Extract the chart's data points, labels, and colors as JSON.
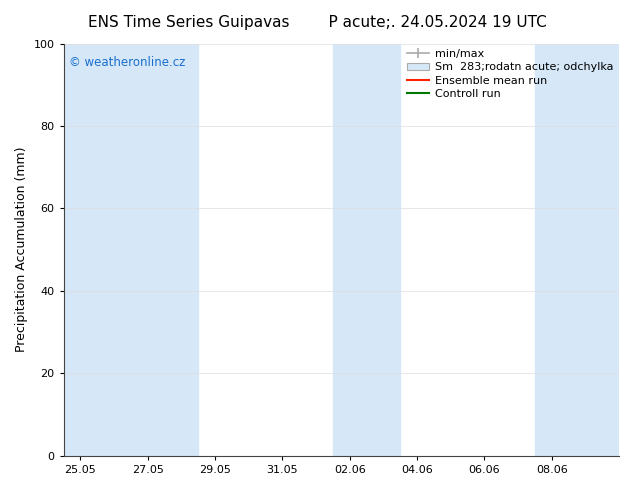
{
  "title_left": "ENS Time Series Guipavas",
  "title_right": "P acute;. 24.05.2024 19 UTC",
  "ylabel": "Precipitation Accumulation (mm)",
  "ylim": [
    0,
    100
  ],
  "yticks": [
    0,
    20,
    40,
    60,
    80,
    100
  ],
  "background_color": "#ffffff",
  "plot_bg_color": "#ffffff",
  "watermark_text": "© weatheronline.cz",
  "watermark_color": "#1a6fcc",
  "x_tick_labels": [
    "25.05",
    "27.05",
    "29.05",
    "31.05",
    "02.06",
    "04.06",
    "06.06",
    "08.06"
  ],
  "x_tick_days": [
    0,
    2,
    4,
    6,
    8,
    10,
    12,
    14
  ],
  "x_lim": [
    -0.5,
    16
  ],
  "shaded_bands": [
    {
      "x_start": -0.5,
      "x_end": 1.5
    },
    {
      "x_start": 1.5,
      "x_end": 3.5
    },
    {
      "x_start": 7.5,
      "x_end": 9.5
    },
    {
      "x_start": 13.5,
      "x_end": 16
    }
  ],
  "shade_color": "#d6e8f8",
  "legend_label_minmax": "min/max",
  "legend_label_std": "Sm  283;rodatn acute; odchylka",
  "legend_label_ens": "Ensemble mean run",
  "legend_label_ctrl": "Controll run",
  "legend_color_minmax": "#aaaaaa",
  "legend_color_std": "#d6e8f8",
  "legend_color_ens": "#ff2200",
  "legend_color_ctrl": "#007700",
  "title_fontsize": 11,
  "tick_label_fontsize": 8,
  "ylabel_fontsize": 9,
  "legend_fontsize": 8
}
